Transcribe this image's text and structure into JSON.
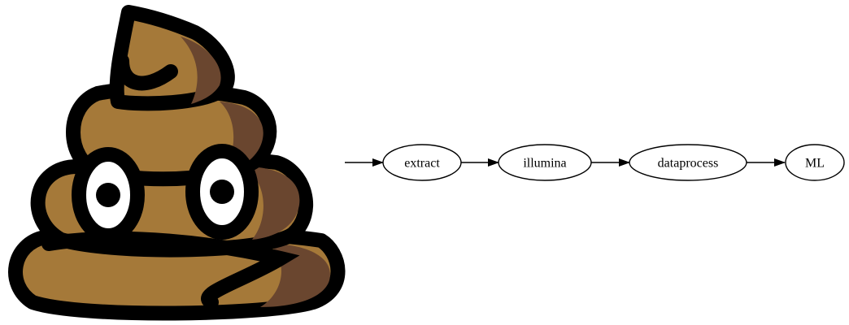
{
  "logo": {
    "icon": "pile-of-poo-icon",
    "colors": {
      "outline": "#000000",
      "body": "#a57939",
      "shade": "#6a462f",
      "eye_white": "#ffffff"
    }
  },
  "pipeline": {
    "nodes": [
      {
        "id": "extract",
        "label": "extract"
      },
      {
        "id": "illumina",
        "label": "illumina"
      },
      {
        "id": "dataprocess",
        "label": "dataprocess"
      },
      {
        "id": "ml",
        "label": "ML"
      }
    ],
    "edges": [
      {
        "from": "",
        "to": "extract"
      },
      {
        "from": "extract",
        "to": "illumina"
      },
      {
        "from": "illumina",
        "to": "dataprocess"
      },
      {
        "from": "dataprocess",
        "to": "ml"
      }
    ]
  }
}
